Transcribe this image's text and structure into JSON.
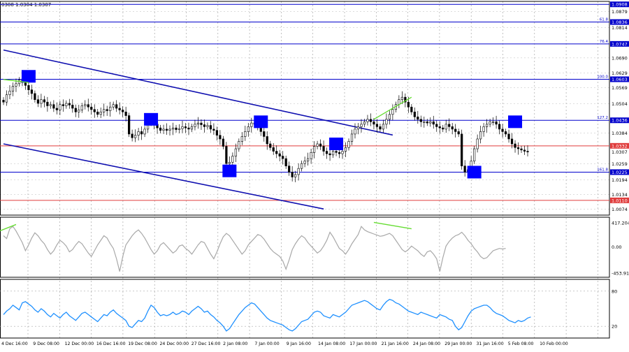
{
  "header_text": "0308 1.0304 1.0307",
  "price_axis": {
    "min": 1.005,
    "max": 1.092,
    "ticks": [
      {
        "v": 1.0879,
        "label": "1.0879"
      },
      {
        "v": 1.0814,
        "label": "1.0814"
      },
      {
        "v": 1.069,
        "label": "1.0690"
      },
      {
        "v": 1.0629,
        "label": "1.0629"
      },
      {
        "v": 1.0569,
        "label": "1.0569"
      },
      {
        "v": 1.0504,
        "label": "1.0504"
      },
      {
        "v": 1.0384,
        "label": "1.0384"
      },
      {
        "v": 1.0259,
        "label": "1.0259"
      },
      {
        "v": 1.0194,
        "label": "1.0194"
      },
      {
        "v": 1.0134,
        "label": "1.0134"
      },
      {
        "v": 1.0074,
        "label": "1.0074"
      }
    ]
  },
  "fib_levels": [
    {
      "v": 1.0908,
      "label": "1.0908",
      "pct": "",
      "color": "#0000cc"
    },
    {
      "v": 1.0836,
      "label": "1.0836",
      "pct": "61.8",
      "color": "#0000cc"
    },
    {
      "v": 1.0747,
      "label": "1.0747",
      "pct": "76.4",
      "color": "#0000cc"
    },
    {
      "v": 1.0603,
      "label": "1.0603",
      "pct": "100.0",
      "color": "#0000cc"
    },
    {
      "v": 1.0436,
      "label": "1.0436",
      "pct": "127.2",
      "color": "#0000cc"
    },
    {
      "v": 1.0225,
      "label": "1.0225",
      "pct": "161.8",
      "color": "#0000cc"
    }
  ],
  "horizontal_lines": [
    {
      "v": 1.0332,
      "label": "1.0332",
      "color": "#e03c3c"
    },
    {
      "v": 1.011,
      "label": "1.0110",
      "color": "#e03c3c"
    }
  ],
  "current_price": {
    "v": 1.0307,
    "label": "1.0307"
  },
  "time_axis": [
    "4 Dec 16:00",
    "9 Dec 08:00",
    "12 Dec 00:00",
    "16 Dec 16:00",
    "19 Dec 08:00",
    "24 Dec 00:00",
    "27 Dec 16:00",
    "2 Jan 08:00",
    "7 Jan 00:00",
    "9 Jan 16:00",
    "14 Jan 08:00",
    "17 Jan 00:00",
    "21 Jan 16:00",
    "24 Jan 08:00",
    "29 Jan 00:00",
    "31 Jan 16:00",
    "5 Feb 08:00",
    "10 Feb 00:00"
  ],
  "chart_data": [
    {
      "type": "candlestick",
      "description_free": true,
      "closes": [
        1.051,
        1.054,
        1.0555,
        1.0575,
        1.0585,
        1.06,
        1.059,
        1.0578,
        1.056,
        1.0545,
        1.052,
        1.0505,
        1.052,
        1.051,
        1.0495,
        1.05,
        1.0485,
        1.0478,
        1.05,
        1.0495,
        1.0505,
        1.0498,
        1.0485,
        1.047,
        1.0478,
        1.0495,
        1.05,
        1.049,
        1.048,
        1.047,
        1.046,
        1.047,
        1.048,
        1.0475,
        1.049,
        1.05,
        1.0485,
        1.0478,
        1.047,
        1.0455,
        1.038,
        1.0365,
        1.0375,
        1.039,
        1.038,
        1.04,
        1.043,
        1.0436,
        1.042,
        1.0405,
        1.0395,
        1.04,
        1.0395,
        1.04,
        1.0405,
        1.0398,
        1.0402,
        1.041,
        1.0405,
        1.04,
        1.041,
        1.042,
        1.0425,
        1.0418,
        1.041,
        1.0415,
        1.04,
        1.0395,
        1.0375,
        1.036,
        1.033,
        1.026,
        1.0265,
        1.029,
        1.032,
        1.035,
        1.037,
        1.039,
        1.041,
        1.0425,
        1.042,
        1.041,
        1.039,
        1.037,
        1.034,
        1.0325,
        1.031,
        1.03,
        1.029,
        1.028,
        1.025,
        1.0225,
        1.0205,
        1.0215,
        1.024,
        1.026,
        1.027,
        1.028,
        1.0305,
        1.033,
        1.034,
        1.033,
        1.031,
        1.03,
        1.0295,
        1.031,
        1.0305,
        1.03,
        1.031,
        1.0325,
        1.035,
        1.038,
        1.04,
        1.041,
        1.042,
        1.043,
        1.044,
        1.043,
        1.042,
        1.041,
        1.04,
        1.042,
        1.044,
        1.046,
        1.048,
        1.05,
        1.052,
        1.053,
        1.051,
        1.049,
        1.047,
        1.045,
        1.044,
        1.043,
        1.043,
        1.0425,
        1.043,
        1.042,
        1.041,
        1.0405,
        1.04,
        1.042,
        1.041,
        1.04,
        1.039,
        1.038,
        1.025,
        1.0225,
        1.0235,
        1.027,
        1.032,
        1.036,
        1.039,
        1.041,
        1.042,
        1.043,
        1.043,
        1.042,
        1.04,
        1.039,
        1.038,
        1.036,
        1.034,
        1.0325,
        1.032,
        1.0315,
        1.031,
        1.0307
      ],
      "divergence_lines": [
        {
          "from": [
            0,
            1.0602
          ],
          "to": [
            8,
            1.059
          ]
        },
        {
          "from": [
            118,
            1.044
          ],
          "to": [
            130,
            1.053
          ]
        }
      ],
      "channel_lines": [
        {
          "from": [
            0,
            1.0722
          ],
          "to": [
            124,
            1.0376
          ]
        },
        {
          "from": [
            0,
            1.034
          ],
          "to": [
            102,
            1.0075
          ]
        }
      ],
      "markers": [
        {
          "i": 8,
          "v": 1.0615
        },
        {
          "i": 47,
          "v": 1.044
        },
        {
          "i": 72,
          "v": 1.023
        },
        {
          "i": 82,
          "v": 1.043
        },
        {
          "i": 106,
          "v": 1.034
        },
        {
          "i": 150,
          "v": 1.0225
        },
        {
          "i": 163,
          "v": 1.043
        }
      ]
    },
    {
      "type": "line",
      "name_free": true,
      "axis_labels": [
        {
          "v": 417.2044,
          "label": "417.2044"
        },
        {
          "v": 0,
          "label": "0.00"
        },
        {
          "v": -453.913,
          "label": "-453.913"
        }
      ],
      "ylim": [
        -520,
        520
      ],
      "values": [
        200,
        150,
        320,
        360,
        280,
        180,
        80,
        -60,
        40,
        160,
        250,
        200,
        120,
        60,
        -40,
        -120,
        -60,
        40,
        120,
        80,
        20,
        -80,
        -40,
        40,
        100,
        60,
        -20,
        -100,
        -160,
        -60,
        40,
        120,
        200,
        160,
        60,
        -20,
        -200,
        -420,
        -160,
        40,
        120,
        200,
        260,
        300,
        240,
        160,
        60,
        -40,
        -120,
        -60,
        40,
        80,
        20,
        -40,
        -100,
        -60,
        20,
        40,
        -20,
        -60,
        -120,
        -40,
        40,
        100,
        80,
        -20,
        -120,
        -200,
        -80,
        60,
        180,
        240,
        200,
        120,
        40,
        -40,
        -120,
        -60,
        40,
        100,
        160,
        220,
        200,
        140,
        60,
        -20,
        -80,
        -120,
        -160,
        -240,
        -380,
        -220,
        -40,
        60,
        140,
        200,
        160,
        80,
        20,
        -40,
        -100,
        -60,
        20,
        120,
        260,
        180,
        80,
        -20,
        -60,
        -120,
        -40,
        60,
        140,
        220,
        360,
        300,
        270,
        250,
        230,
        210,
        190,
        200,
        220,
        240,
        200,
        120,
        40,
        -40,
        -80,
        -40,
        20,
        -20,
        -60,
        -120,
        -160,
        -80,
        -60,
        -120,
        -200,
        -420,
        -180,
        20,
        100,
        160,
        200,
        220,
        260,
        200,
        120,
        60,
        -20,
        -80,
        -160,
        -200,
        -180,
        -120,
        -60,
        -40,
        -20,
        -30,
        -20
      ],
      "divergence_line": {
        "from": [
          118,
          430
        ],
        "to": [
          130,
          320
        ]
      }
    },
    {
      "type": "line",
      "name_free": true,
      "axis_labels": [
        {
          "v": 80,
          "label": "80"
        },
        {
          "v": 20,
          "label": "20"
        }
      ],
      "ylim": [
        0,
        100
      ],
      "levels": [
        80,
        20
      ],
      "values": [
        40,
        46,
        50,
        56,
        52,
        48,
        60,
        62,
        58,
        54,
        48,
        44,
        50,
        46,
        40,
        36,
        42,
        38,
        34,
        40,
        44,
        38,
        34,
        30,
        36,
        42,
        44,
        40,
        36,
        32,
        28,
        34,
        40,
        38,
        44,
        48,
        42,
        38,
        34,
        30,
        20,
        18,
        24,
        30,
        28,
        34,
        46,
        56,
        52,
        44,
        38,
        40,
        38,
        40,
        44,
        40,
        42,
        46,
        44,
        40,
        46,
        50,
        54,
        50,
        44,
        46,
        40,
        36,
        30,
        26,
        20,
        12,
        16,
        24,
        32,
        40,
        46,
        52,
        56,
        60,
        58,
        52,
        46,
        40,
        34,
        30,
        28,
        26,
        24,
        22,
        18,
        14,
        12,
        16,
        22,
        28,
        30,
        32,
        38,
        44,
        46,
        44,
        38,
        36,
        34,
        40,
        38,
        36,
        40,
        44,
        50,
        56,
        58,
        60,
        62,
        64,
        62,
        58,
        54,
        50,
        48,
        56,
        62,
        66,
        64,
        60,
        58,
        54,
        50,
        46,
        44,
        42,
        40,
        44,
        42,
        40,
        38,
        36,
        34,
        40,
        38,
        36,
        32,
        30,
        20,
        14,
        18,
        28,
        38,
        46,
        50,
        52,
        54,
        56,
        56,
        52,
        46,
        42,
        40,
        38,
        34,
        30,
        28,
        26,
        30,
        28,
        30,
        34,
        36
      ]
    }
  ]
}
